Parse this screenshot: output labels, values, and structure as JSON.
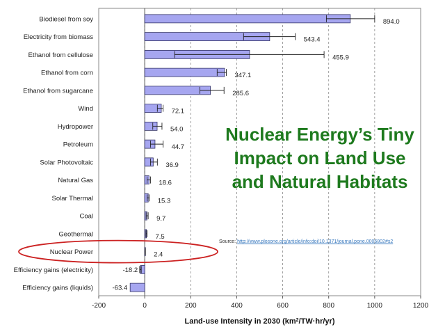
{
  "headline": [
    "Nuclear Energy’s Tiny",
    "Impact on Land Use",
    "and Natural Habitats"
  ],
  "source": {
    "prefix": "Source:",
    "url": "http://www.plosone.org/article/info:doi/10.1371/journal.pone.0006802#s2"
  },
  "colors": {
    "bar_fill": "#a6a6f0",
    "bar_stroke": "#333366",
    "highlight": "#cc2222",
    "headline": "#1e7a1e",
    "grid": "#888888"
  },
  "chart_data": {
    "type": "bar",
    "orientation": "horizontal",
    "xlabel_main": "Land-use Intensity in 2030  (km",
    "xlabel_sup": "2",
    "xlabel_tail": "/TW·hr/yr)",
    "xlim": [
      -200,
      1200
    ],
    "xticks": [
      -200,
      0,
      200,
      400,
      600,
      800,
      1000,
      1200
    ],
    "grid": "vertical dashed",
    "highlighted_category": "Nuclear Power",
    "categories": [
      "Biodiesel from soy",
      "Electricity from biomass",
      "Ethanol from cellulose",
      "Ethanol from corn",
      "Ethanol from sugarcane",
      "Wind",
      "Hydropower",
      "Petroleum",
      "Solar Photovoltaic",
      "Natural Gas",
      "Solar Thermal",
      "Coal",
      "Geothermal",
      "Nuclear Power",
      "Efficiency gains (electricity)",
      "Efficiency gains (liquids)"
    ],
    "value_labels": [
      "894.0",
      "543.4",
      "455.9",
      "347.1",
      "285.6",
      "72.1",
      "54.0",
      "44.7",
      "36.9",
      "18.6",
      "15.3",
      "9.7",
      "7.5",
      "2.4",
      "-18.2",
      "-63.4"
    ],
    "values": [
      894.0,
      543.4,
      455.9,
      347.1,
      285.6,
      72.1,
      54.0,
      44.7,
      36.9,
      18.6,
      15.3,
      9.7,
      7.5,
      2.4,
      -18.2,
      -63.4
    ],
    "error_low": [
      790,
      430,
      130,
      315,
      240,
      55,
      35,
      25,
      25,
      10,
      10,
      6,
      5,
      1.5,
      -22,
      -63.4
    ],
    "error_high": [
      1000,
      655,
      780,
      355,
      345,
      80,
      75,
      80,
      55,
      25,
      20,
      15,
      10,
      3,
      -15,
      -63.4
    ]
  }
}
